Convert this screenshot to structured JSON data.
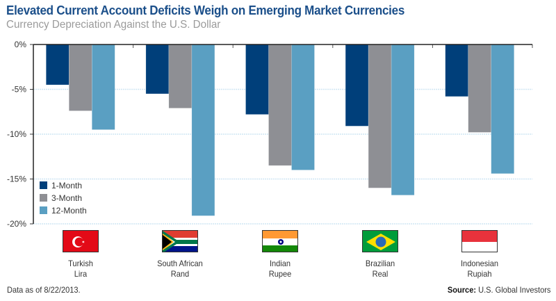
{
  "header": {
    "title": "Elevated Current Account Deficits Weigh on Emerging Market Currencies",
    "subtitle": "Currency Depreciation Against the U.S. Dollar"
  },
  "footer": {
    "note": "Data as of 8/22/2013.",
    "source_label": "Source:",
    "source_text": "U.S. Global Investors"
  },
  "colors": {
    "1-Month": "#003f7a",
    "3-Month": "#8e8f94",
    "12-Month": "#5a9fc2",
    "title": "#1b4f8a",
    "gridline": "#cfe6f3"
  },
  "chart_data": {
    "type": "bar",
    "title": "Elevated Current Account Deficits Weigh on Emerging Market Currencies",
    "subtitle": "Currency Depreciation Against the U.S. Dollar",
    "xlabel": "",
    "ylabel": "",
    "ylim": [
      -20,
      0
    ],
    "yticks": [
      0,
      -5,
      -10,
      -15,
      -20
    ],
    "ytick_labels": [
      "0%",
      "-5%",
      "-10%",
      "-15%",
      "-20%"
    ],
    "grid": true,
    "legend_position": "bottom-left",
    "categories": [
      {
        "line1": "Turkish",
        "line2": "Lira",
        "flag": "turkey"
      },
      {
        "line1": "South African",
        "line2": "Rand",
        "flag": "south-africa"
      },
      {
        "line1": "Indian",
        "line2": "Rupee",
        "flag": "india"
      },
      {
        "line1": "Brazilian",
        "line2": "Real",
        "flag": "brazil"
      },
      {
        "line1": "Indonesian",
        "line2": "Rupiah",
        "flag": "indonesia"
      }
    ],
    "series": [
      {
        "name": "1-Month",
        "values": [
          -4.5,
          -5.5,
          -7.8,
          -9.1,
          -5.8
        ]
      },
      {
        "name": "3-Month",
        "values": [
          -7.4,
          -7.1,
          -13.5,
          -16.0,
          -9.8
        ]
      },
      {
        "name": "12-Month",
        "values": [
          -9.5,
          -19.1,
          -14.0,
          -16.8,
          -14.4
        ]
      }
    ]
  }
}
